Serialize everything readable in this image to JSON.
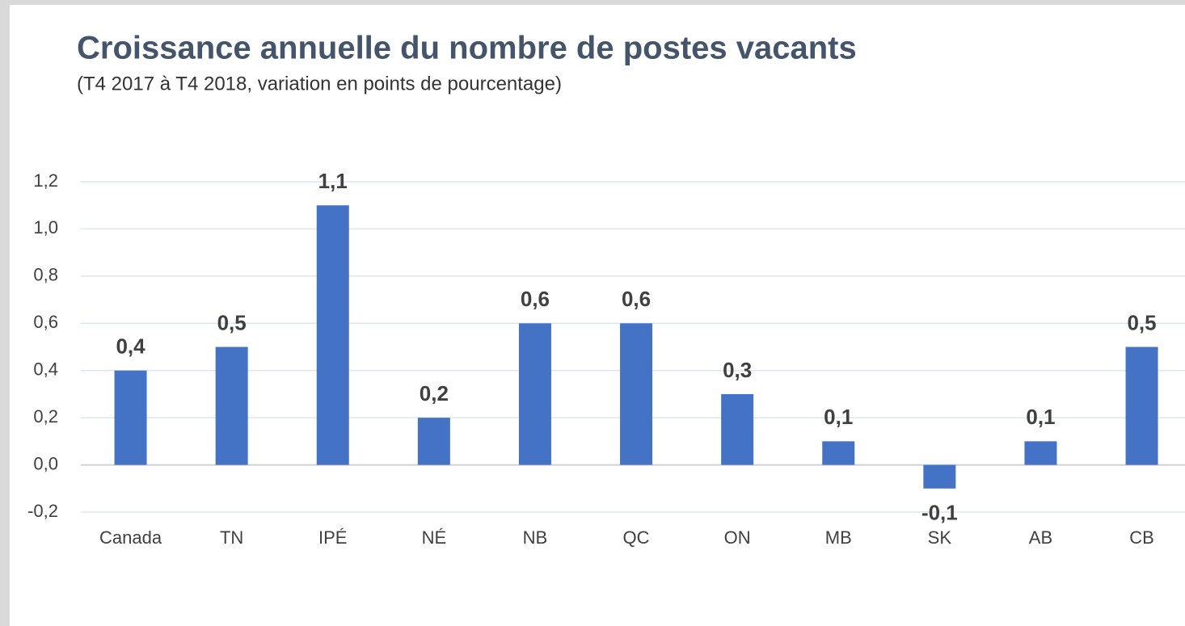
{
  "chart_data": {
    "type": "bar",
    "title": "Croissance annuelle du nombre de postes vacants",
    "subtitle": "(T4 2017 à T4 2018, variation en points de pourcentage)",
    "categories": [
      "Canada",
      "TN",
      "IPÉ",
      "NÉ",
      "NB",
      "QC",
      "ON",
      "MB",
      "SK",
      "AB",
      "CB"
    ],
    "values": [
      0.4,
      0.5,
      1.1,
      0.2,
      0.6,
      0.6,
      0.3,
      0.1,
      -0.1,
      0.1,
      0.5
    ],
    "value_labels": [
      "0,4",
      "0,5",
      "1,1",
      "0,2",
      "0,6",
      "0,6",
      "0,3",
      "0,1",
      "-0,1",
      "0,1",
      "0,5"
    ],
    "color": "#4472c4",
    "ylim": [
      -0.2,
      1.2
    ],
    "yticks": [
      {
        "value": -0.2,
        "label": "-0,2"
      },
      {
        "value": 0,
        "label": "0,0"
      },
      {
        "value": 0.2,
        "label": "0,2"
      },
      {
        "value": 0.4,
        "label": "0,4"
      },
      {
        "value": 0.6,
        "label": "0,6"
      },
      {
        "value": 0.8,
        "label": "0,8"
      },
      {
        "value": 1.0,
        "label": "1,0"
      },
      {
        "value": 1.2,
        "label": "1,2"
      }
    ],
    "grid": true
  }
}
